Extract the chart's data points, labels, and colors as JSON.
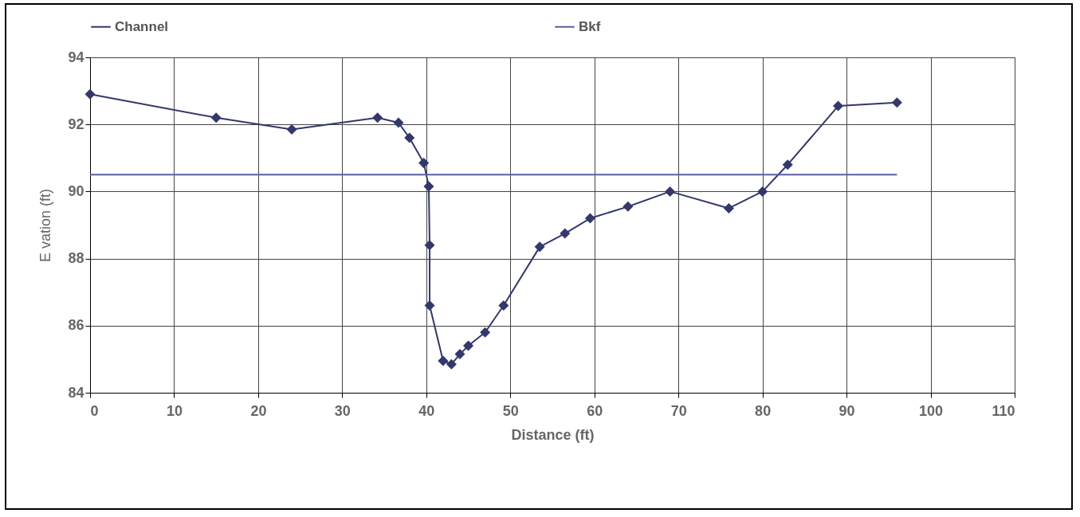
{
  "chart_data": {
    "type": "line",
    "xlabel": "Distance (ft)",
    "ylabel": "E   vation (ft)",
    "xlim": [
      0,
      110
    ],
    "xticks": [
      0,
      10,
      20,
      30,
      40,
      50,
      60,
      70,
      80,
      90,
      100,
      110
    ],
    "ylim": [
      84,
      94
    ],
    "yticks": [
      84,
      86,
      88,
      90,
      92,
      94
    ],
    "grid": true,
    "legend": "top",
    "line_style": "solid",
    "series": [
      {
        "name": "Channel",
        "marker": "diamond",
        "color": "#33386b",
        "x": [
          0,
          15,
          24,
          34.2,
          36.7,
          38,
          39.7,
          40.3,
          40.4,
          40.4,
          42,
          43,
          44,
          45,
          47,
          49.2,
          53.5,
          56.5,
          59.5,
          64,
          69,
          76,
          80,
          83,
          89,
          96
        ],
        "values": [
          92.9,
          92.2,
          91.85,
          92.2,
          92.05,
          91.6,
          90.85,
          90.15,
          88.4,
          86.6,
          84.95,
          84.85,
          85.15,
          85.4,
          85.8,
          86.6,
          88.35,
          88.75,
          89.2,
          89.55,
          90,
          89.5,
          90,
          90.8,
          92.55,
          92.65
        ]
      },
      {
        "name": "Bkf",
        "marker": "none",
        "color": "#5a5fa0",
        "x": [
          0,
          96
        ],
        "values": [
          90.5,
          90.5
        ]
      }
    ]
  }
}
